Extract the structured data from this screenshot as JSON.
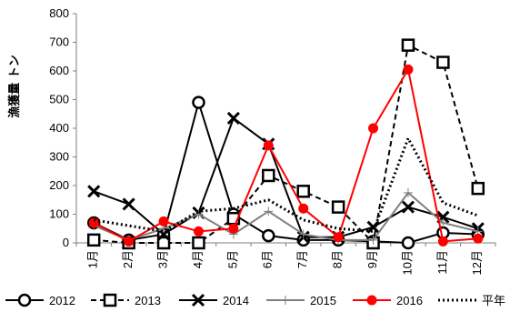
{
  "chart_data": {
    "type": "line",
    "ylabel": "漁獲量 トン",
    "ylim": [
      0,
      800
    ],
    "yticks": [
      0,
      100,
      200,
      300,
      400,
      500,
      600,
      700,
      800
    ],
    "categories": [
      "1月",
      "2月",
      "3月",
      "4月",
      "5月",
      "6月",
      "7月",
      "8月",
      "9月",
      "10月",
      "11月",
      "12月"
    ],
    "legend_position": "bottom",
    "series": [
      {
        "name": "2012",
        "color": "#000000",
        "marker": "circle",
        "dash": "solid",
        "values": [
          70,
          10,
          30,
          490,
          100,
          25,
          10,
          10,
          5,
          0,
          35,
          30
        ]
      },
      {
        "name": "2013",
        "color": "#000000",
        "marker": "square",
        "dash": "dashed",
        "values": [
          10,
          0,
          0,
          0,
          85,
          235,
          180,
          125,
          0,
          690,
          630,
          190
        ]
      },
      {
        "name": "2014",
        "color": "#000000",
        "marker": "x",
        "dash": "solid",
        "values": [
          180,
          135,
          30,
          105,
          435,
          345,
          20,
          20,
          55,
          125,
          90,
          50
        ]
      },
      {
        "name": "2015",
        "color": "#7f7f7f",
        "marker": "plus",
        "dash": "solid",
        "values": [
          60,
          10,
          50,
          100,
          30,
          110,
          30,
          10,
          10,
          175,
          70,
          40
        ]
      },
      {
        "name": "2016",
        "color": "#ff0000",
        "marker": "dot",
        "dash": "solid",
        "values": [
          70,
          5,
          75,
          40,
          50,
          340,
          120,
          20,
          400,
          605,
          5,
          15
        ]
      },
      {
        "name": "平年",
        "color": "#000000",
        "marker": "none",
        "dash": "dotted",
        "values": [
          80,
          60,
          40,
          110,
          120,
          150,
          80,
          50,
          40,
          365,
          140,
          95
        ]
      }
    ]
  }
}
